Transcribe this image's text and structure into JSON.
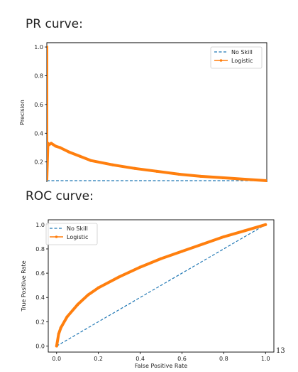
{
  "headings": {
    "pr": "PR curve:",
    "roc": "ROC curve:"
  },
  "page_number": "13",
  "colors": {
    "no_skill": "#1f77b4",
    "logistic": "#ff7f0e"
  },
  "chart_data": [
    {
      "type": "line",
      "id": "pr",
      "title": "",
      "xlabel": "",
      "ylabel": "Precision",
      "xlim": [
        0.0,
        1.0
      ],
      "ylim": [
        0.06,
        1.03
      ],
      "yticks": [
        0.2,
        0.4,
        0.6,
        0.8,
        1.0
      ],
      "ytick_labels": [
        "0.2",
        "0.4",
        "0.6",
        "0.8",
        "1.0"
      ],
      "grid": false,
      "legend_position": "top-right",
      "series": [
        {
          "name": "No Skill",
          "style": "dashed",
          "color": "#1f77b4",
          "x": [
            0.0,
            1.0
          ],
          "y": [
            0.07,
            0.07
          ]
        },
        {
          "name": "Logistic",
          "style": "solid-marker",
          "color": "#ff7f0e",
          "x": [
            0.0,
            0.0,
            0.0,
            0.005,
            0.01,
            0.02,
            0.04,
            0.06,
            0.1,
            0.15,
            0.2,
            0.3,
            0.4,
            0.5,
            0.6,
            0.7,
            0.8,
            0.9,
            1.0
          ],
          "y": [
            1.0,
            0.5,
            0.08,
            0.33,
            0.32,
            0.33,
            0.31,
            0.3,
            0.27,
            0.24,
            0.21,
            0.18,
            0.155,
            0.135,
            0.115,
            0.1,
            0.09,
            0.08,
            0.07
          ]
        }
      ]
    },
    {
      "type": "line",
      "id": "roc",
      "title": "",
      "xlabel": "False Positive Rate",
      "ylabel": "True Positive Rate",
      "xlim": [
        -0.04,
        1.04
      ],
      "ylim": [
        -0.05,
        1.04
      ],
      "xticks": [
        0.0,
        0.2,
        0.4,
        0.6,
        0.8,
        1.0
      ],
      "xtick_labels": [
        "0.0",
        "0.2",
        "0.4",
        "0.6",
        "0.8",
        "1.0"
      ],
      "yticks": [
        0.0,
        0.2,
        0.4,
        0.6,
        0.8,
        1.0
      ],
      "ytick_labels": [
        "0.0",
        "0.2",
        "0.4",
        "0.6",
        "0.8",
        "1.0"
      ],
      "grid": false,
      "legend_position": "top-left",
      "series": [
        {
          "name": "No Skill",
          "style": "dashed",
          "color": "#1f77b4",
          "x": [
            0.0,
            1.0
          ],
          "y": [
            0.0,
            1.0
          ]
        },
        {
          "name": "Logistic",
          "style": "solid-marker",
          "color": "#ff7f0e",
          "x": [
            0.0,
            0.01,
            0.02,
            0.05,
            0.1,
            0.15,
            0.2,
            0.3,
            0.4,
            0.5,
            0.6,
            0.7,
            0.8,
            0.9,
            1.0
          ],
          "y": [
            0.0,
            0.1,
            0.15,
            0.24,
            0.34,
            0.42,
            0.48,
            0.57,
            0.65,
            0.72,
            0.78,
            0.84,
            0.9,
            0.95,
            1.0
          ]
        }
      ]
    }
  ]
}
